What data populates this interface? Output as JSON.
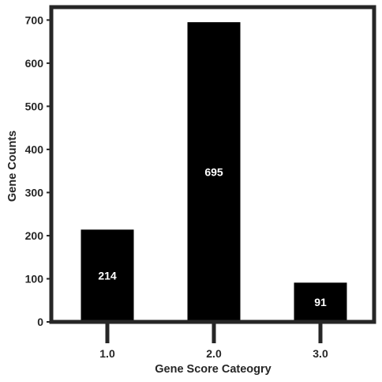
{
  "chart_data": {
    "type": "bar",
    "categories": [
      "1.0",
      "2.0",
      "3.0"
    ],
    "values": [
      214,
      695,
      91
    ],
    "data_labels": [
      "214",
      "695",
      "91"
    ],
    "xlabel": "Gene Score Cateogry",
    "ylabel": "Gene Counts",
    "ylim": [
      0,
      730
    ],
    "yticks": [
      "0",
      "100",
      "200",
      "300",
      "400",
      "500",
      "600",
      "700"
    ],
    "grid": false,
    "bar_color": "#000000",
    "label_color": "#ffffff",
    "frame_color": "#262626"
  }
}
